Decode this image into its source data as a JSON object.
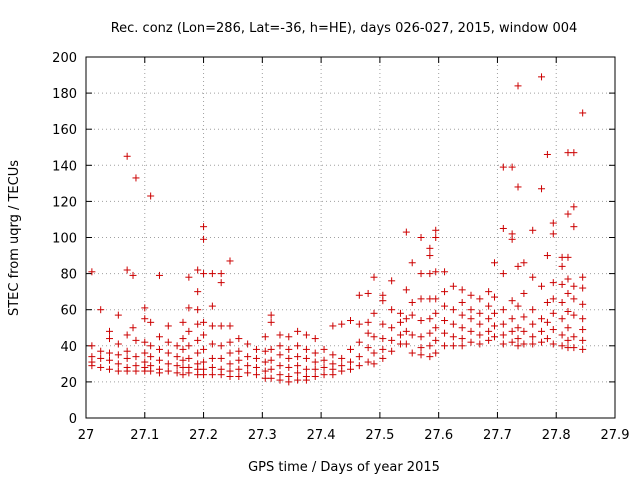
{
  "chart_data": {
    "type": "scatter",
    "title": "Rec. conz (Lon=286, Lat=-36, h=HE), days 026-027, 2015, window 004",
    "xlabel": "GPS time / Days of year 2015",
    "ylabel": "STEC from uqrg / TECUs",
    "xlim": [
      27,
      27.9
    ],
    "ylim": [
      0,
      200
    ],
    "x_ticks": [
      27,
      27.1,
      27.2,
      27.3,
      27.4,
      27.5,
      27.6,
      27.7,
      27.8,
      27.9
    ],
    "y_ticks": [
      0,
      20,
      40,
      60,
      80,
      100,
      120,
      140,
      160,
      180,
      200
    ],
    "x_tick_labels": [
      "27",
      "27.1",
      "27.2",
      "27.3",
      "27.4",
      "27.5",
      "27.6",
      "27.7",
      "27.8",
      "27.9"
    ],
    "y_tick_labels": [
      "0",
      "20",
      "40",
      "60",
      "80",
      "100",
      "120",
      "140",
      "160",
      "180",
      "200"
    ],
    "grid": true,
    "marker": "plus",
    "marker_color": "#cc0000",
    "points": [
      [
        27.01,
        81
      ],
      [
        27.01,
        40
      ],
      [
        27.01,
        34
      ],
      [
        27.01,
        31
      ],
      [
        27.01,
        29
      ],
      [
        27.025,
        60
      ],
      [
        27.025,
        37
      ],
      [
        27.025,
        33
      ],
      [
        27.025,
        28
      ],
      [
        27.04,
        48
      ],
      [
        27.04,
        44
      ],
      [
        27.04,
        36
      ],
      [
        27.04,
        32
      ],
      [
        27.04,
        27
      ],
      [
        27.055,
        57
      ],
      [
        27.055,
        41
      ],
      [
        27.055,
        35
      ],
      [
        27.055,
        30
      ],
      [
        27.055,
        26
      ],
      [
        27.07,
        145
      ],
      [
        27.07,
        82
      ],
      [
        27.07,
        46
      ],
      [
        27.07,
        37
      ],
      [
        27.07,
        33
      ],
      [
        27.07,
        28
      ],
      [
        27.07,
        26
      ],
      [
        27.08,
        79
      ],
      [
        27.08,
        50
      ],
      [
        27.085,
        133
      ],
      [
        27.085,
        43
      ],
      [
        27.085,
        34
      ],
      [
        27.085,
        29
      ],
      [
        27.085,
        26
      ],
      [
        27.1,
        61
      ],
      [
        27.1,
        55
      ],
      [
        27.1,
        42
      ],
      [
        27.1,
        36
      ],
      [
        27.1,
        31
      ],
      [
        27.1,
        28
      ],
      [
        27.1,
        26
      ],
      [
        27.11,
        123
      ],
      [
        27.11,
        53
      ],
      [
        27.11,
        40
      ],
      [
        27.11,
        34
      ],
      [
        27.11,
        29
      ],
      [
        27.11,
        26
      ],
      [
        27.125,
        79
      ],
      [
        27.125,
        45
      ],
      [
        27.125,
        38
      ],
      [
        27.125,
        32
      ],
      [
        27.125,
        27
      ],
      [
        27.125,
        25
      ],
      [
        27.14,
        51
      ],
      [
        27.14,
        42
      ],
      [
        27.14,
        36
      ],
      [
        27.14,
        30
      ],
      [
        27.14,
        26
      ],
      [
        27.155,
        40
      ],
      [
        27.155,
        34
      ],
      [
        27.155,
        29
      ],
      [
        27.155,
        25
      ],
      [
        27.165,
        53
      ],
      [
        27.165,
        44
      ],
      [
        27.165,
        38
      ],
      [
        27.165,
        32
      ],
      [
        27.165,
        28
      ],
      [
        27.165,
        24
      ],
      [
        27.175,
        78
      ],
      [
        27.175,
        61
      ],
      [
        27.175,
        48
      ],
      [
        27.175,
        40
      ],
      [
        27.175,
        33
      ],
      [
        27.175,
        28
      ],
      [
        27.175,
        25
      ],
      [
        27.19,
        82
      ],
      [
        27.19,
        70
      ],
      [
        27.19,
        60
      ],
      [
        27.19,
        52
      ],
      [
        27.19,
        43
      ],
      [
        27.19,
        36
      ],
      [
        27.19,
        30
      ],
      [
        27.19,
        27
      ],
      [
        27.19,
        24
      ],
      [
        27.2,
        106
      ],
      [
        27.2,
        99
      ],
      [
        27.2,
        80
      ],
      [
        27.2,
        53
      ],
      [
        27.2,
        46
      ],
      [
        27.2,
        38
      ],
      [
        27.2,
        31
      ],
      [
        27.2,
        27
      ],
      [
        27.2,
        24
      ],
      [
        27.215,
        80
      ],
      [
        27.215,
        62
      ],
      [
        27.215,
        51
      ],
      [
        27.215,
        41
      ],
      [
        27.215,
        33
      ],
      [
        27.215,
        28
      ],
      [
        27.215,
        24
      ],
      [
        27.23,
        80
      ],
      [
        27.23,
        75
      ],
      [
        27.23,
        51
      ],
      [
        27.23,
        40
      ],
      [
        27.23,
        33
      ],
      [
        27.23,
        27
      ],
      [
        27.23,
        24
      ],
      [
        27.245,
        87
      ],
      [
        27.245,
        51
      ],
      [
        27.245,
        42
      ],
      [
        27.245,
        36
      ],
      [
        27.245,
        30
      ],
      [
        27.245,
        26
      ],
      [
        27.245,
        23
      ],
      [
        27.26,
        44
      ],
      [
        27.26,
        37
      ],
      [
        27.26,
        32
      ],
      [
        27.26,
        27
      ],
      [
        27.26,
        23
      ],
      [
        27.275,
        41
      ],
      [
        27.275,
        34
      ],
      [
        27.275,
        29
      ],
      [
        27.275,
        25
      ],
      [
        27.29,
        38
      ],
      [
        27.29,
        33
      ],
      [
        27.29,
        28
      ],
      [
        27.29,
        24
      ],
      [
        27.305,
        45
      ],
      [
        27.305,
        37
      ],
      [
        27.305,
        31
      ],
      [
        27.305,
        26
      ],
      [
        27.305,
        22
      ],
      [
        27.315,
        57
      ],
      [
        27.315,
        53
      ],
      [
        27.315,
        38
      ],
      [
        27.315,
        32
      ],
      [
        27.315,
        27
      ],
      [
        27.315,
        22
      ],
      [
        27.33,
        46
      ],
      [
        27.33,
        40
      ],
      [
        27.33,
        35
      ],
      [
        27.33,
        29
      ],
      [
        27.33,
        24
      ],
      [
        27.33,
        21
      ],
      [
        27.345,
        45
      ],
      [
        27.345,
        38
      ],
      [
        27.345,
        33
      ],
      [
        27.345,
        28
      ],
      [
        27.345,
        23
      ],
      [
        27.345,
        20
      ],
      [
        27.36,
        48
      ],
      [
        27.36,
        40
      ],
      [
        27.36,
        34
      ],
      [
        27.36,
        29
      ],
      [
        27.36,
        25
      ],
      [
        27.36,
        21
      ],
      [
        27.375,
        46
      ],
      [
        27.375,
        38
      ],
      [
        27.375,
        33
      ],
      [
        27.375,
        27
      ],
      [
        27.375,
        23
      ],
      [
        27.375,
        21
      ],
      [
        27.39,
        44
      ],
      [
        27.39,
        36
      ],
      [
        27.39,
        31
      ],
      [
        27.39,
        27
      ],
      [
        27.39,
        23
      ],
      [
        27.405,
        38
      ],
      [
        27.405,
        32
      ],
      [
        27.405,
        28
      ],
      [
        27.405,
        24
      ],
      [
        27.42,
        51
      ],
      [
        27.42,
        35
      ],
      [
        27.42,
        30
      ],
      [
        27.42,
        27
      ],
      [
        27.42,
        24
      ],
      [
        27.435,
        52
      ],
      [
        27.435,
        33
      ],
      [
        27.435,
        29
      ],
      [
        27.435,
        26
      ],
      [
        27.45,
        54
      ],
      [
        27.45,
        38
      ],
      [
        27.45,
        31
      ],
      [
        27.45,
        27
      ],
      [
        27.465,
        68
      ],
      [
        27.465,
        52
      ],
      [
        27.465,
        42
      ],
      [
        27.465,
        34
      ],
      [
        27.465,
        29
      ],
      [
        27.48,
        69
      ],
      [
        27.48,
        53
      ],
      [
        27.48,
        47
      ],
      [
        27.48,
        39
      ],
      [
        27.48,
        31
      ],
      [
        27.49,
        78
      ],
      [
        27.49,
        58
      ],
      [
        27.49,
        45
      ],
      [
        27.49,
        36
      ],
      [
        27.49,
        30
      ],
      [
        27.505,
        68
      ],
      [
        27.505,
        65
      ],
      [
        27.505,
        52
      ],
      [
        27.505,
        44
      ],
      [
        27.505,
        38
      ],
      [
        27.505,
        33
      ],
      [
        27.52,
        76
      ],
      [
        27.52,
        60
      ],
      [
        27.52,
        50
      ],
      [
        27.52,
        43
      ],
      [
        27.52,
        37
      ],
      [
        27.535,
        58
      ],
      [
        27.535,
        53
      ],
      [
        27.535,
        46
      ],
      [
        27.535,
        41
      ],
      [
        27.545,
        103
      ],
      [
        27.545,
        71
      ],
      [
        27.545,
        55
      ],
      [
        27.545,
        48
      ],
      [
        27.545,
        41
      ],
      [
        27.555,
        86
      ],
      [
        27.555,
        64
      ],
      [
        27.555,
        57
      ],
      [
        27.555,
        46
      ],
      [
        27.555,
        36
      ],
      [
        27.57,
        100
      ],
      [
        27.57,
        80
      ],
      [
        27.57,
        66
      ],
      [
        27.57,
        54
      ],
      [
        27.57,
        45
      ],
      [
        27.57,
        39
      ],
      [
        27.57,
        35
      ],
      [
        27.585,
        94
      ],
      [
        27.585,
        90
      ],
      [
        27.585,
        80
      ],
      [
        27.585,
        66
      ],
      [
        27.585,
        55
      ],
      [
        27.585,
        47
      ],
      [
        27.585,
        40
      ],
      [
        27.585,
        34
      ],
      [
        27.595,
        104
      ],
      [
        27.595,
        100
      ],
      [
        27.595,
        81
      ],
      [
        27.595,
        66
      ],
      [
        27.595,
        58
      ],
      [
        27.595,
        50
      ],
      [
        27.595,
        43
      ],
      [
        27.595,
        36
      ],
      [
        27.61,
        81
      ],
      [
        27.61,
        70
      ],
      [
        27.61,
        62
      ],
      [
        27.61,
        54
      ],
      [
        27.61,
        47
      ],
      [
        27.61,
        40
      ],
      [
        27.625,
        73
      ],
      [
        27.625,
        60
      ],
      [
        27.625,
        52
      ],
      [
        27.625,
        45
      ],
      [
        27.625,
        40
      ],
      [
        27.64,
        71
      ],
      [
        27.64,
        64
      ],
      [
        27.64,
        57
      ],
      [
        27.64,
        50
      ],
      [
        27.64,
        44
      ],
      [
        27.64,
        40
      ],
      [
        27.655,
        68
      ],
      [
        27.655,
        60
      ],
      [
        27.655,
        55
      ],
      [
        27.655,
        48
      ],
      [
        27.655,
        42
      ],
      [
        27.67,
        66
      ],
      [
        27.67,
        58
      ],
      [
        27.67,
        52
      ],
      [
        27.67,
        46
      ],
      [
        27.67,
        41
      ],
      [
        27.685,
        70
      ],
      [
        27.685,
        62
      ],
      [
        27.685,
        55
      ],
      [
        27.685,
        48
      ],
      [
        27.685,
        43
      ],
      [
        27.695,
        86
      ],
      [
        27.695,
        67
      ],
      [
        27.695,
        58
      ],
      [
        27.695,
        51
      ],
      [
        27.695,
        45
      ],
      [
        27.71,
        139
      ],
      [
        27.71,
        105
      ],
      [
        27.71,
        80
      ],
      [
        27.71,
        60
      ],
      [
        27.71,
        52
      ],
      [
        27.71,
        46
      ],
      [
        27.71,
        41
      ],
      [
        27.725,
        139
      ],
      [
        27.725,
        102
      ],
      [
        27.725,
        99
      ],
      [
        27.725,
        65
      ],
      [
        27.725,
        55
      ],
      [
        27.725,
        48
      ],
      [
        27.725,
        42
      ],
      [
        27.735,
        184
      ],
      [
        27.735,
        128
      ],
      [
        27.735,
        84
      ],
      [
        27.735,
        62
      ],
      [
        27.735,
        50
      ],
      [
        27.735,
        44
      ],
      [
        27.735,
        40
      ],
      [
        27.745,
        86
      ],
      [
        27.745,
        69
      ],
      [
        27.745,
        56
      ],
      [
        27.745,
        48
      ],
      [
        27.745,
        41
      ],
      [
        27.76,
        104
      ],
      [
        27.76,
        78
      ],
      [
        27.76,
        60
      ],
      [
        27.76,
        52
      ],
      [
        27.76,
        45
      ],
      [
        27.76,
        41
      ],
      [
        27.775,
        189
      ],
      [
        27.775,
        127
      ],
      [
        27.775,
        73
      ],
      [
        27.775,
        55
      ],
      [
        27.775,
        48
      ],
      [
        27.775,
        42
      ],
      [
        27.785,
        146
      ],
      [
        27.785,
        90
      ],
      [
        27.785,
        64
      ],
      [
        27.785,
        53
      ],
      [
        27.785,
        44
      ],
      [
        27.795,
        108
      ],
      [
        27.795,
        102
      ],
      [
        27.795,
        75
      ],
      [
        27.795,
        66
      ],
      [
        27.795,
        58
      ],
      [
        27.795,
        49
      ],
      [
        27.795,
        41
      ],
      [
        27.81,
        89
      ],
      [
        27.81,
        84
      ],
      [
        27.81,
        74
      ],
      [
        27.81,
        64
      ],
      [
        27.81,
        55
      ],
      [
        27.81,
        46
      ],
      [
        27.81,
        40
      ],
      [
        27.82,
        147
      ],
      [
        27.82,
        113
      ],
      [
        27.82,
        89
      ],
      [
        27.82,
        77
      ],
      [
        27.82,
        69
      ],
      [
        27.82,
        59
      ],
      [
        27.82,
        50
      ],
      [
        27.82,
        43
      ],
      [
        27.82,
        39
      ],
      [
        27.83,
        147
      ],
      [
        27.83,
        117
      ],
      [
        27.83,
        106
      ],
      [
        27.83,
        73
      ],
      [
        27.83,
        66
      ],
      [
        27.83,
        57
      ],
      [
        27.83,
        45
      ],
      [
        27.83,
        39
      ],
      [
        27.845,
        169
      ],
      [
        27.845,
        78
      ],
      [
        27.845,
        72
      ],
      [
        27.845,
        63
      ],
      [
        27.845,
        55
      ],
      [
        27.845,
        49
      ],
      [
        27.845,
        43
      ],
      [
        27.845,
        38
      ]
    ]
  }
}
